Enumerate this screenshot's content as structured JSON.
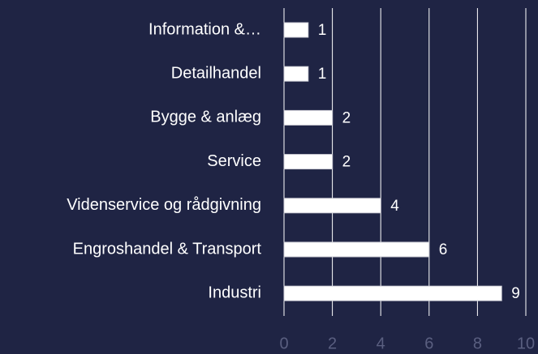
{
  "chart_data": {
    "type": "bar",
    "orientation": "horizontal",
    "categories": [
      "Information &…",
      "Detailhandel",
      "Bygge & anlæg",
      "Service",
      "Videnservice og rådgivning",
      "Engroshandel & Transport",
      "Industri"
    ],
    "values": [
      1,
      1,
      2,
      2,
      4,
      6,
      9
    ],
    "color": "#ffffff",
    "xlim": [
      0,
      10
    ],
    "xticks": [
      0,
      2,
      4,
      6,
      8,
      10
    ],
    "grid": true
  }
}
